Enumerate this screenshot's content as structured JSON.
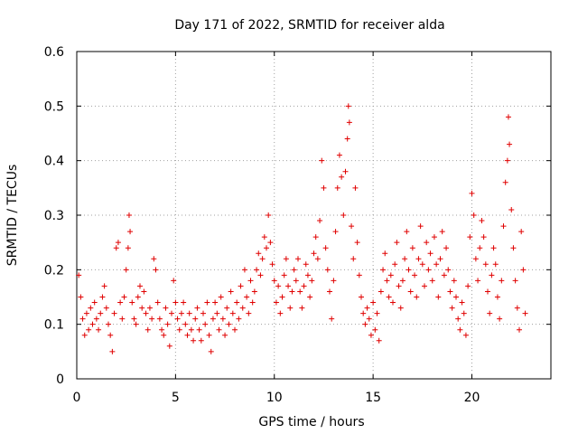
{
  "chart_data": {
    "type": "scatter",
    "title": "Day 171 of 2022, SRMTID for receiver alda",
    "xlabel": "GPS time / hours",
    "ylabel": "SRMTID / TECUs",
    "xlim": [
      0,
      24
    ],
    "ylim": [
      0,
      0.6
    ],
    "xticks": [
      0,
      5,
      10,
      15,
      20
    ],
    "yticks": [
      0,
      0.1,
      0.2,
      0.3,
      0.4,
      0.5,
      0.6
    ],
    "xtick_labels": [
      "0",
      "5",
      "10",
      "15",
      "20"
    ],
    "ytick_labels": [
      "0",
      "0.1",
      "0.2",
      "0.3",
      "0.4",
      "0.5",
      "0.6"
    ],
    "grid": true,
    "marker": "plus",
    "color": "#e00000",
    "series": [
      {
        "name": "SRMTID",
        "points": [
          [
            0.1,
            0.19
          ],
          [
            0.2,
            0.15
          ],
          [
            0.3,
            0.11
          ],
          [
            0.4,
            0.08
          ],
          [
            0.5,
            0.12
          ],
          [
            0.6,
            0.09
          ],
          [
            0.7,
            0.13
          ],
          [
            0.8,
            0.1
          ],
          [
            0.9,
            0.14
          ],
          [
            1.0,
            0.11
          ],
          [
            1.1,
            0.09
          ],
          [
            1.2,
            0.12
          ],
          [
            1.3,
            0.15
          ],
          [
            1.4,
            0.17
          ],
          [
            1.5,
            0.13
          ],
          [
            1.6,
            0.1
          ],
          [
            1.7,
            0.08
          ],
          [
            1.8,
            0.05
          ],
          [
            1.9,
            0.12
          ],
          [
            2.0,
            0.24
          ],
          [
            2.1,
            0.25
          ],
          [
            2.2,
            0.14
          ],
          [
            2.3,
            0.11
          ],
          [
            2.4,
            0.15
          ],
          [
            2.5,
            0.2
          ],
          [
            2.6,
            0.24
          ],
          [
            2.65,
            0.3
          ],
          [
            2.7,
            0.27
          ],
          [
            2.8,
            0.14
          ],
          [
            2.9,
            0.11
          ],
          [
            3.0,
            0.1
          ],
          [
            3.1,
            0.15
          ],
          [
            3.2,
            0.17
          ],
          [
            3.3,
            0.13
          ],
          [
            3.4,
            0.16
          ],
          [
            3.5,
            0.12
          ],
          [
            3.6,
            0.09
          ],
          [
            3.7,
            0.13
          ],
          [
            3.8,
            0.11
          ],
          [
            3.9,
            0.22
          ],
          [
            4.0,
            0.2
          ],
          [
            4.1,
            0.14
          ],
          [
            4.2,
            0.11
          ],
          [
            4.3,
            0.09
          ],
          [
            4.4,
            0.08
          ],
          [
            4.5,
            0.13
          ],
          [
            4.6,
            0.1
          ],
          [
            4.7,
            0.06
          ],
          [
            4.8,
            0.12
          ],
          [
            4.9,
            0.18
          ],
          [
            5.0,
            0.14
          ],
          [
            5.1,
            0.11
          ],
          [
            5.2,
            0.09
          ],
          [
            5.3,
            0.12
          ],
          [
            5.4,
            0.14
          ],
          [
            5.5,
            0.1
          ],
          [
            5.6,
            0.08
          ],
          [
            5.7,
            0.12
          ],
          [
            5.8,
            0.09
          ],
          [
            5.9,
            0.07
          ],
          [
            6.0,
            0.11
          ],
          [
            6.1,
            0.13
          ],
          [
            6.2,
            0.09
          ],
          [
            6.3,
            0.07
          ],
          [
            6.4,
            0.12
          ],
          [
            6.5,
            0.1
          ],
          [
            6.6,
            0.14
          ],
          [
            6.7,
            0.08
          ],
          [
            6.8,
            0.05
          ],
          [
            6.9,
            0.11
          ],
          [
            7.0,
            0.14
          ],
          [
            7.1,
            0.12
          ],
          [
            7.2,
            0.09
          ],
          [
            7.3,
            0.15
          ],
          [
            7.4,
            0.11
          ],
          [
            7.5,
            0.08
          ],
          [
            7.6,
            0.13
          ],
          [
            7.7,
            0.1
          ],
          [
            7.8,
            0.16
          ],
          [
            7.9,
            0.12
          ],
          [
            8.0,
            0.09
          ],
          [
            8.1,
            0.14
          ],
          [
            8.2,
            0.11
          ],
          [
            8.3,
            0.17
          ],
          [
            8.4,
            0.13
          ],
          [
            8.5,
            0.2
          ],
          [
            8.6,
            0.15
          ],
          [
            8.7,
            0.12
          ],
          [
            8.8,
            0.18
          ],
          [
            8.9,
            0.14
          ],
          [
            9.0,
            0.16
          ],
          [
            9.1,
            0.2
          ],
          [
            9.2,
            0.23
          ],
          [
            9.3,
            0.19
          ],
          [
            9.4,
            0.22
          ],
          [
            9.5,
            0.26
          ],
          [
            9.6,
            0.24
          ],
          [
            9.7,
            0.3
          ],
          [
            9.8,
            0.25
          ],
          [
            9.9,
            0.21
          ],
          [
            10.0,
            0.18
          ],
          [
            10.1,
            0.14
          ],
          [
            10.2,
            0.17
          ],
          [
            10.3,
            0.12
          ],
          [
            10.4,
            0.15
          ],
          [
            10.5,
            0.19
          ],
          [
            10.6,
            0.22
          ],
          [
            10.7,
            0.17
          ],
          [
            10.8,
            0.13
          ],
          [
            10.9,
            0.16
          ],
          [
            11.0,
            0.2
          ],
          [
            11.1,
            0.18
          ],
          [
            11.2,
            0.22
          ],
          [
            11.3,
            0.16
          ],
          [
            11.4,
            0.13
          ],
          [
            11.5,
            0.17
          ],
          [
            11.6,
            0.21
          ],
          [
            11.7,
            0.19
          ],
          [
            11.8,
            0.15
          ],
          [
            11.9,
            0.18
          ],
          [
            12.0,
            0.23
          ],
          [
            12.1,
            0.26
          ],
          [
            12.2,
            0.22
          ],
          [
            12.3,
            0.29
          ],
          [
            12.4,
            0.4
          ],
          [
            12.5,
            0.35
          ],
          [
            12.6,
            0.24
          ],
          [
            12.7,
            0.2
          ],
          [
            12.8,
            0.16
          ],
          [
            12.9,
            0.11
          ],
          [
            13.0,
            0.18
          ],
          [
            13.1,
            0.27
          ],
          [
            13.2,
            0.35
          ],
          [
            13.3,
            0.41
          ],
          [
            13.4,
            0.37
          ],
          [
            13.5,
            0.3
          ],
          [
            13.6,
            0.38
          ],
          [
            13.7,
            0.44
          ],
          [
            13.75,
            0.5
          ],
          [
            13.8,
            0.47
          ],
          [
            13.9,
            0.28
          ],
          [
            14.0,
            0.22
          ],
          [
            14.1,
            0.35
          ],
          [
            14.2,
            0.25
          ],
          [
            14.3,
            0.19
          ],
          [
            14.4,
            0.15
          ],
          [
            14.5,
            0.12
          ],
          [
            14.6,
            0.1
          ],
          [
            14.7,
            0.13
          ],
          [
            14.8,
            0.11
          ],
          [
            14.9,
            0.08
          ],
          [
            15.0,
            0.14
          ],
          [
            15.1,
            0.09
          ],
          [
            15.2,
            0.12
          ],
          [
            15.3,
            0.07
          ],
          [
            15.4,
            0.16
          ],
          [
            15.5,
            0.2
          ],
          [
            15.6,
            0.23
          ],
          [
            15.7,
            0.18
          ],
          [
            15.8,
            0.15
          ],
          [
            15.9,
            0.19
          ],
          [
            16.0,
            0.14
          ],
          [
            16.1,
            0.21
          ],
          [
            16.2,
            0.25
          ],
          [
            16.3,
            0.17
          ],
          [
            16.4,
            0.13
          ],
          [
            16.5,
            0.18
          ],
          [
            16.6,
            0.22
          ],
          [
            16.7,
            0.27
          ],
          [
            16.8,
            0.2
          ],
          [
            16.9,
            0.16
          ],
          [
            17.0,
            0.24
          ],
          [
            17.1,
            0.19
          ],
          [
            17.2,
            0.15
          ],
          [
            17.3,
            0.22
          ],
          [
            17.4,
            0.28
          ],
          [
            17.5,
            0.21
          ],
          [
            17.6,
            0.17
          ],
          [
            17.7,
            0.25
          ],
          [
            17.8,
            0.2
          ],
          [
            17.9,
            0.23
          ],
          [
            18.0,
            0.18
          ],
          [
            18.1,
            0.26
          ],
          [
            18.2,
            0.21
          ],
          [
            18.3,
            0.15
          ],
          [
            18.4,
            0.22
          ],
          [
            18.5,
            0.27
          ],
          [
            18.6,
            0.19
          ],
          [
            18.7,
            0.24
          ],
          [
            18.8,
            0.2
          ],
          [
            18.9,
            0.16
          ],
          [
            19.0,
            0.13
          ],
          [
            19.1,
            0.18
          ],
          [
            19.2,
            0.15
          ],
          [
            19.3,
            0.11
          ],
          [
            19.4,
            0.09
          ],
          [
            19.5,
            0.14
          ],
          [
            19.6,
            0.12
          ],
          [
            19.7,
            0.08
          ],
          [
            19.8,
            0.17
          ],
          [
            19.9,
            0.26
          ],
          [
            20.0,
            0.34
          ],
          [
            20.1,
            0.3
          ],
          [
            20.2,
            0.22
          ],
          [
            20.3,
            0.18
          ],
          [
            20.4,
            0.24
          ],
          [
            20.5,
            0.29
          ],
          [
            20.6,
            0.26
          ],
          [
            20.7,
            0.21
          ],
          [
            20.8,
            0.16
          ],
          [
            20.9,
            0.12
          ],
          [
            21.0,
            0.19
          ],
          [
            21.1,
            0.24
          ],
          [
            21.2,
            0.21
          ],
          [
            21.3,
            0.15
          ],
          [
            21.4,
            0.11
          ],
          [
            21.5,
            0.18
          ],
          [
            21.6,
            0.28
          ],
          [
            21.7,
            0.36
          ],
          [
            21.8,
            0.4
          ],
          [
            21.85,
            0.48
          ],
          [
            21.9,
            0.43
          ],
          [
            22.0,
            0.31
          ],
          [
            22.1,
            0.24
          ],
          [
            22.2,
            0.18
          ],
          [
            22.3,
            0.13
          ],
          [
            22.4,
            0.09
          ],
          [
            22.5,
            0.27
          ],
          [
            22.6,
            0.2
          ],
          [
            22.7,
            0.12
          ]
        ]
      }
    ]
  }
}
